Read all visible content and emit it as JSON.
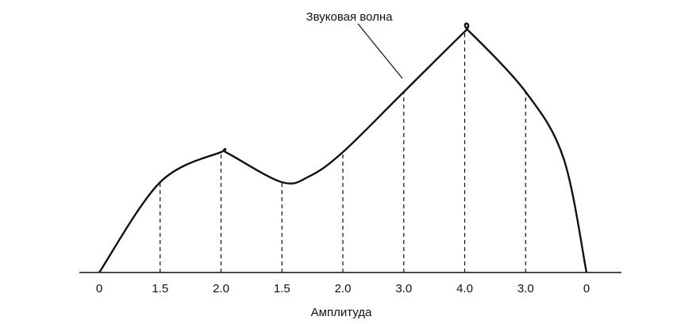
{
  "chart_data": {
    "type": "line",
    "title": "",
    "xlabel": "Амплитуда",
    "ylabel": "",
    "annotation": "Звуковая волна",
    "samples": [
      "0",
      "1.5",
      "2.0",
      "1.5",
      "2.0",
      "3.0",
      "4.0",
      "3.0",
      "0"
    ],
    "values": [
      0,
      1.5,
      2.0,
      1.5,
      2.0,
      3.0,
      4.0,
      3.0,
      0
    ],
    "ylim": [
      0,
      4.0
    ],
    "grid": false,
    "legend": "none",
    "colors": {
      "curve": "#111111",
      "sample_lines": "#111111"
    }
  }
}
